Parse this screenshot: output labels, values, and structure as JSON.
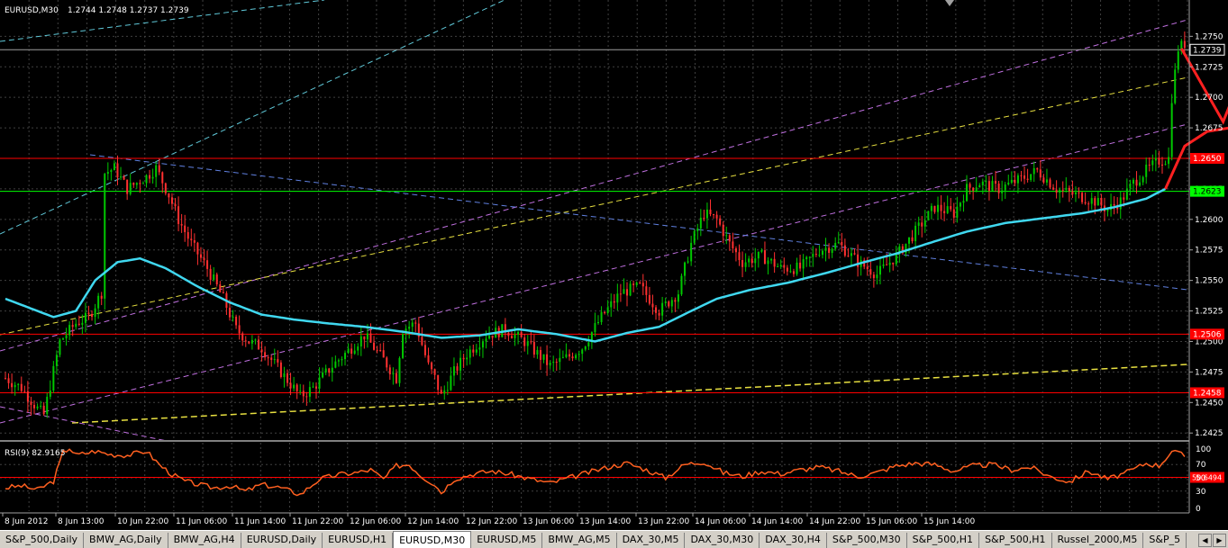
{
  "header": {
    "symbol": "EURUSD,M30",
    "ohlc": "1.2744 1.2748 1.2737 1.2739"
  },
  "rsi_label": "RSI(9) 82.9165",
  "tabs": [
    "S&P_500,Daily",
    "BMW_AG,Daily",
    "BMW_AG,H4",
    "EURUSD,Daily",
    "EURUSD,H1",
    "EURUSD,M30",
    "EURUSD,M5",
    "BMW_AG,M5",
    "DAX_30,M5",
    "DAX_30,M30",
    "DAX_30,H4",
    "S&P_500,M30",
    "S&P_500,H1",
    "S&P_500,H1",
    "Russel_2000,M5",
    "S&P_5"
  ],
  "active_tab": 5,
  "nav_icons": [
    "scroll-left-icon",
    "scroll-right-icon"
  ],
  "colors": {
    "bull": "#00c800",
    "bear": "#ff3030",
    "ma": "#40d8f0",
    "rsi": "#ff6020",
    "grid": "#404040"
  },
  "chart_data": [
    {
      "type": "candlestick",
      "symbol": "EURUSD,M30",
      "ylim": [
        1.242,
        1.2765
      ],
      "y_ticks": [
        "1.2750",
        "1.2725",
        "1.2700",
        "1.2675",
        "1.2650",
        "1.2625",
        "1.2600",
        "1.2575",
        "1.2550",
        "1.2525",
        "1.2500",
        "1.2475",
        "1.2450",
        "1.2425"
      ],
      "x_ticks": [
        "8 Jun 2012",
        "8 Jun 13:00",
        "10 Jun 22:00",
        "11 Jun 06:00",
        "11 Jun 14:00",
        "11 Jun 22:00",
        "12 Jun 06:00",
        "12 Jun 14:00",
        "12 Jun 22:00",
        "13 Jun 06:00",
        "13 Jun 14:00",
        "13 Jun 22:00",
        "14 Jun 06:00",
        "14 Jun 14:00",
        "14 Jun 22:00",
        "15 Jun 06:00",
        "15 Jun 14:00"
      ],
      "price_path": [
        [
          0,
          1.247
        ],
        [
          5,
          1.2462
        ],
        [
          10,
          1.2445
        ],
        [
          12,
          1.244
        ],
        [
          17,
          1.25
        ],
        [
          22,
          1.2515
        ],
        [
          26,
          1.252
        ],
        [
          30,
          1.254
        ],
        [
          31,
          1.2638
        ],
        [
          34,
          1.2642
        ],
        [
          38,
          1.2625
        ],
        [
          44,
          1.2635
        ],
        [
          47,
          1.2642
        ],
        [
          51,
          1.262
        ],
        [
          54,
          1.26
        ],
        [
          58,
          1.258
        ],
        [
          63,
          1.256
        ],
        [
          68,
          1.2535
        ],
        [
          72,
          1.251
        ],
        [
          76,
          1.25
        ],
        [
          80,
          1.2495
        ],
        [
          86,
          1.2475
        ],
        [
          92,
          1.2455
        ],
        [
          96,
          1.2462
        ],
        [
          102,
          1.248
        ],
        [
          108,
          1.2495
        ],
        [
          112,
          1.2505
        ],
        [
          118,
          1.2485
        ],
        [
          122,
          1.247
        ],
        [
          124,
          1.251
        ],
        [
          128,
          1.2515
        ],
        [
          132,
          1.248
        ],
        [
          134,
          1.247
        ],
        [
          136,
          1.2455
        ],
        [
          140,
          1.2475
        ],
        [
          144,
          1.249
        ],
        [
          150,
          1.2505
        ],
        [
          156,
          1.251
        ],
        [
          162,
          1.25
        ],
        [
          166,
          1.249
        ],
        [
          170,
          1.248
        ],
        [
          176,
          1.2488
        ],
        [
          180,
          1.2495
        ],
        [
          186,
          1.252
        ],
        [
          192,
          1.254
        ],
        [
          198,
          1.2545
        ],
        [
          204,
          1.2525
        ],
        [
          210,
          1.254
        ],
        [
          214,
          1.258
        ],
        [
          218,
          1.2605
        ],
        [
          222,
          1.26
        ],
        [
          226,
          1.258
        ],
        [
          230,
          1.2565
        ],
        [
          236,
          1.257
        ],
        [
          242,
          1.256
        ],
        [
          248,
          1.256
        ],
        [
          254,
          1.2575
        ],
        [
          260,
          1.258
        ],
        [
          266,
          1.2565
        ],
        [
          272,
          1.2555
        ],
        [
          278,
          1.257
        ],
        [
          284,
          1.259
        ],
        [
          290,
          1.261
        ],
        [
          296,
          1.2605
        ],
        [
          300,
          1.2625
        ],
        [
          304,
          1.263
        ],
        [
          310,
          1.2625
        ],
        [
          316,
          1.2632
        ],
        [
          322,
          1.264
        ],
        [
          328,
          1.2625
        ],
        [
          334,
          1.262
        ],
        [
          340,
          1.2615
        ],
        [
          344,
          1.2608
        ],
        [
          348,
          1.2615
        ],
        [
          352,
          1.263
        ],
        [
          356,
          1.264
        ],
        [
          360,
          1.2648
        ],
        [
          363,
          1.265
        ],
        [
          364,
          1.27
        ],
        [
          366,
          1.274
        ],
        [
          368,
          1.2744
        ]
      ],
      "moving_average": [
        [
          0,
          1.2535
        ],
        [
          15,
          1.252
        ],
        [
          22,
          1.2525
        ],
        [
          28,
          1.255
        ],
        [
          35,
          1.2565
        ],
        [
          42,
          1.2568
        ],
        [
          50,
          1.256
        ],
        [
          60,
          1.2545
        ],
        [
          70,
          1.2532
        ],
        [
          80,
          1.2522
        ],
        [
          90,
          1.2518
        ],
        [
          100,
          1.2515
        ],
        [
          112,
          1.2512
        ],
        [
          124,
          1.2508
        ],
        [
          136,
          1.2503
        ],
        [
          148,
          1.2505
        ],
        [
          160,
          1.251
        ],
        [
          172,
          1.2506
        ],
        [
          184,
          1.25
        ],
        [
          194,
          1.2507
        ],
        [
          204,
          1.2512
        ],
        [
          214,
          1.2525
        ],
        [
          222,
          1.2535
        ],
        [
          232,
          1.2542
        ],
        [
          244,
          1.2548
        ],
        [
          256,
          1.2556
        ],
        [
          268,
          1.2565
        ],
        [
          278,
          1.2572
        ],
        [
          290,
          1.2582
        ],
        [
          300,
          1.259
        ],
        [
          312,
          1.2597
        ],
        [
          324,
          1.2601
        ],
        [
          336,
          1.2605
        ],
        [
          346,
          1.261
        ],
        [
          356,
          1.2617
        ],
        [
          362,
          1.2625
        ]
      ],
      "horizontal_levels": [
        {
          "price": 1.2739,
          "label": "1.2739",
          "color": "#a0a0a0"
        },
        {
          "price": 1.265,
          "label": "1.2650",
          "color": "#ff0000"
        },
        {
          "price": 1.2623,
          "label": "1.2623",
          "color": "#00ff00"
        },
        {
          "price": 1.2506,
          "label": "1.2506",
          "color": "#ff0000"
        },
        {
          "price": 1.2458,
          "label": "1.2458",
          "color": "#ff0000"
        }
      ],
      "forecast_lines": [
        {
          "color": "#ff2020",
          "points": [
            [
              367,
              1.274
            ],
            [
              380,
              1.268
            ],
            [
              393,
              1.2765
            ]
          ]
        },
        {
          "color": "#ff2020",
          "points": [
            [
              362,
              1.2625
            ],
            [
              368,
              1.266
            ],
            [
              375,
              1.2672
            ],
            [
              382,
              1.2675
            ]
          ]
        }
      ]
    },
    {
      "type": "line",
      "name": "RSI(9)",
      "value": 82.9165,
      "ylim": [
        0,
        100
      ],
      "y_ticks": [
        "100",
        "70",
        "50",
        "30",
        "0"
      ],
      "levels": [
        {
          "value": 50.6494,
          "label": "50.6494"
        }
      ],
      "points": [
        [
          0,
          35
        ],
        [
          5,
          38
        ],
        [
          10,
          32
        ],
        [
          15,
          45
        ],
        [
          18,
          88
        ],
        [
          20,
          95
        ],
        [
          22,
          84
        ],
        [
          28,
          90
        ],
        [
          33,
          85
        ],
        [
          38,
          84
        ],
        [
          44,
          90
        ],
        [
          48,
          70
        ],
        [
          52,
          55
        ],
        [
          56,
          45
        ],
        [
          60,
          40
        ],
        [
          65,
          35
        ],
        [
          70,
          38
        ],
        [
          75,
          30
        ],
        [
          80,
          40
        ],
        [
          86,
          35
        ],
        [
          92,
          25
        ],
        [
          98,
          48
        ],
        [
          104,
          55
        ],
        [
          110,
          58
        ],
        [
          114,
          62
        ],
        [
          118,
          48
        ],
        [
          122,
          68
        ],
        [
          126,
          70
        ],
        [
          130,
          52
        ],
        [
          134,
          40
        ],
        [
          136,
          28
        ],
        [
          140,
          48
        ],
        [
          146,
          56
        ],
        [
          152,
          60
        ],
        [
          158,
          55
        ],
        [
          164,
          48
        ],
        [
          170,
          42
        ],
        [
          176,
          50
        ],
        [
          182,
          58
        ],
        [
          188,
          66
        ],
        [
          194,
          72
        ],
        [
          200,
          62
        ],
        [
          206,
          50
        ],
        [
          212,
          70
        ],
        [
          218,
          74
        ],
        [
          224,
          58
        ],
        [
          230,
          52
        ],
        [
          236,
          60
        ],
        [
          242,
          56
        ],
        [
          248,
          62
        ],
        [
          254,
          66
        ],
        [
          260,
          60
        ],
        [
          266,
          52
        ],
        [
          272,
          58
        ],
        [
          278,
          68
        ],
        [
          284,
          72
        ],
        [
          290,
          70
        ],
        [
          296,
          60
        ],
        [
          302,
          68
        ],
        [
          308,
          70
        ],
        [
          314,
          62
        ],
        [
          320,
          66
        ],
        [
          326,
          52
        ],
        [
          332,
          44
        ],
        [
          338,
          60
        ],
        [
          344,
          48
        ],
        [
          350,
          58
        ],
        [
          356,
          72
        ],
        [
          360,
          68
        ],
        [
          364,
          90
        ],
        [
          368,
          83
        ]
      ]
    }
  ]
}
